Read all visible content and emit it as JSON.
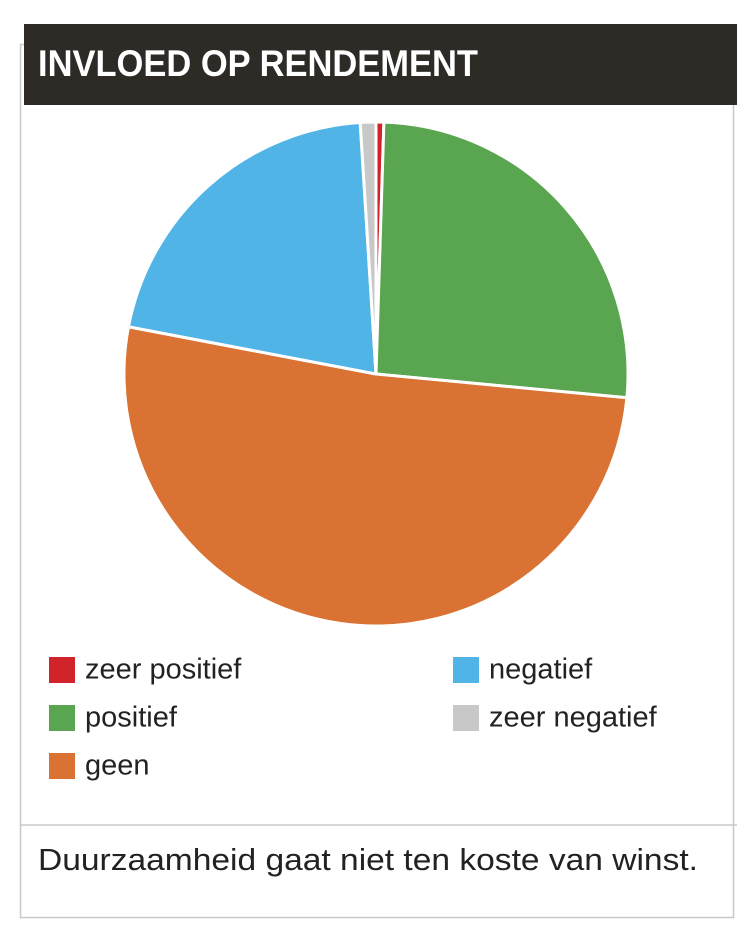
{
  "chart_data": {
    "type": "pie",
    "title": "INVLOED OP RENDEMENT",
    "categories": [
      "zeer positief",
      "positief",
      "geen",
      "negatief",
      "zeer negatief"
    ],
    "values": [
      0.5,
      26,
      51.5,
      21,
      1
    ],
    "colors": [
      "#d1232a",
      "#5aa550",
      "#d97232",
      "#50b4e6",
      "#c8c8c8"
    ],
    "caption": "Duurzaamheid gaat niet ten koste van winst."
  }
}
